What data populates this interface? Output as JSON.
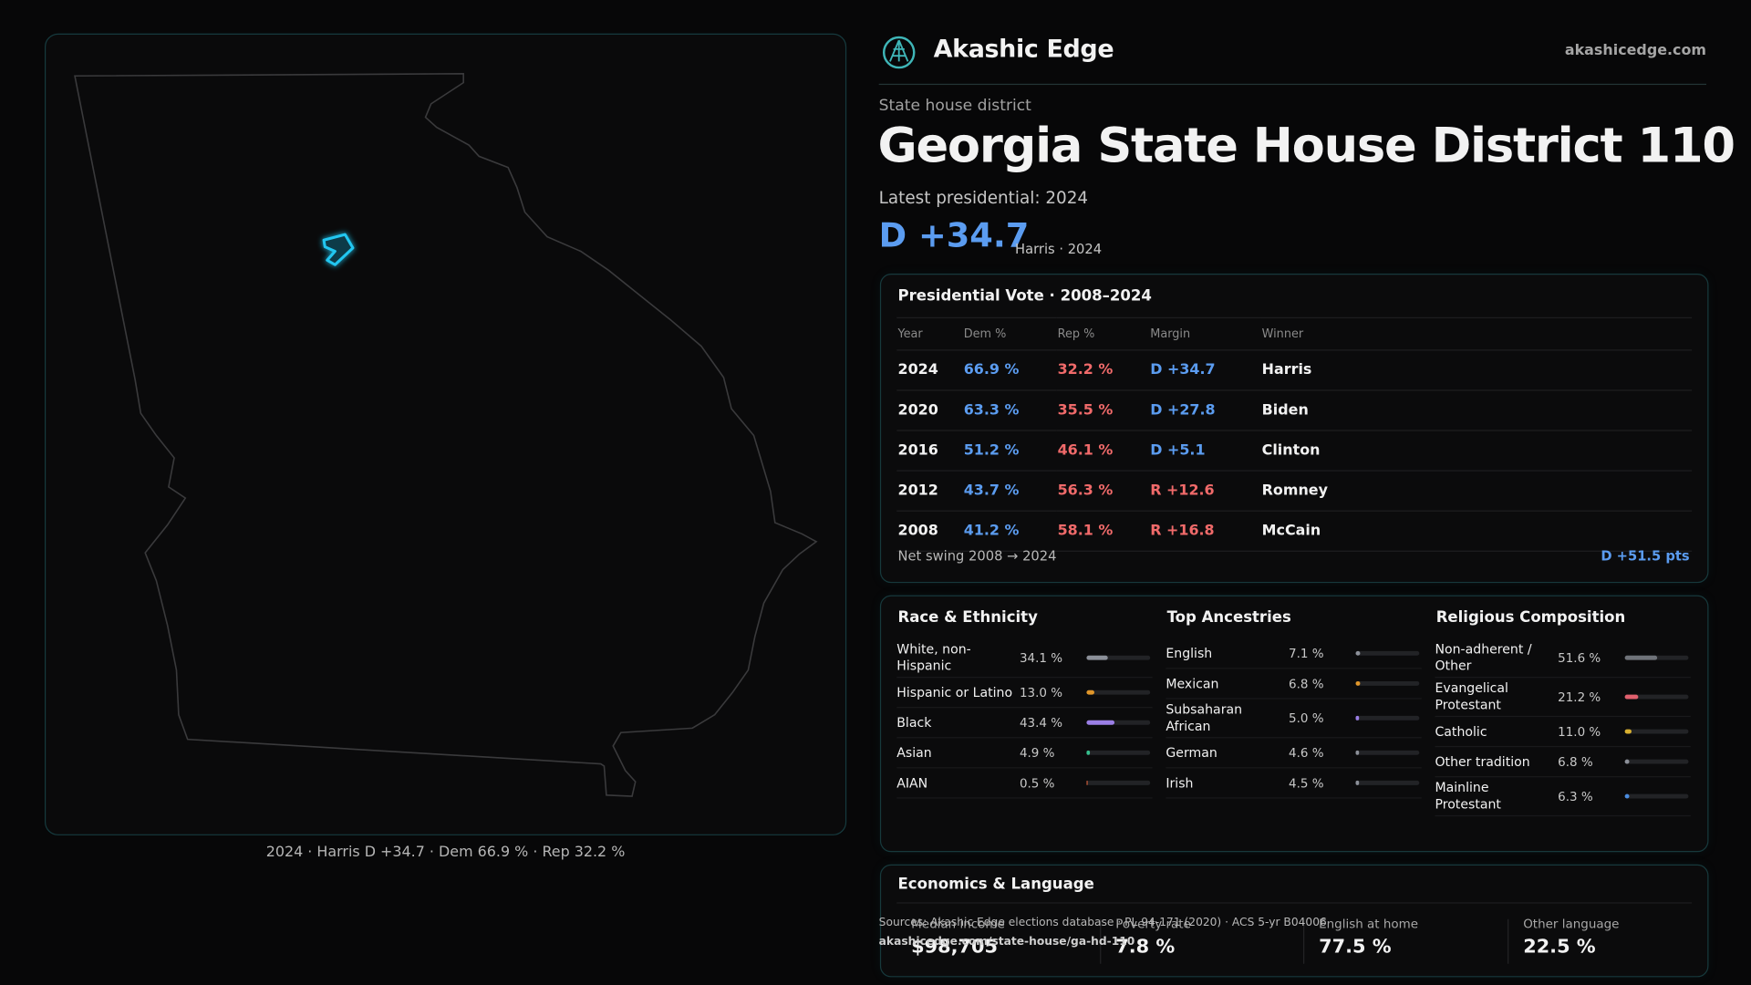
{
  "header": {
    "brand": "Akashic Edge",
    "site": "akashicedge.com"
  },
  "district": {
    "kicker": "State house district",
    "title": "Georgia State House District 110",
    "latest": "Latest presidential: 2024",
    "margin": "D +34.7",
    "margin_note": "Harris · 2024"
  },
  "map": {
    "caption": "2024 · Harris D +34.7 · Dem 66.9 % · Rep 32.2 %"
  },
  "presidential": {
    "title": "Presidential Vote · 2008–2024",
    "columns": [
      "Year",
      "Dem %",
      "Rep %",
      "Margin",
      "Winner"
    ],
    "rows": [
      [
        "2024",
        "66.9 %",
        "32.2 %",
        "D +34.7",
        "Harris"
      ],
      [
        "2020",
        "63.3 %",
        "35.5 %",
        "D +27.8",
        "Biden"
      ],
      [
        "2016",
        "51.2 %",
        "46.1 %",
        "D +5.1",
        "Clinton"
      ],
      [
        "2012",
        "43.7 %",
        "56.3 %",
        "R +12.6",
        "Romney"
      ],
      [
        "2008",
        "41.2 %",
        "58.1 %",
        "R +16.8",
        "McCain"
      ]
    ],
    "swing_label": "Net swing 2008 → 2024",
    "swing_value": "D +51.5 pts"
  },
  "race": {
    "title": "Race & Ethnicity",
    "rows": [
      {
        "label": "White, non-Hispanic",
        "value": 34.1,
        "value_label": "34.1 %",
        "color": "#8c9099"
      },
      {
        "label": "Hispanic or Latino",
        "value": 13.0,
        "value_label": "13.0 %",
        "color": "#e0962a"
      },
      {
        "label": "Black",
        "value": 43.4,
        "value_label": "43.4 %",
        "color": "#9b7fe6"
      },
      {
        "label": "Asian",
        "value": 4.9,
        "value_label": "4.9 %",
        "color": "#36c08e"
      },
      {
        "label": "AIAN",
        "value": 0.5,
        "value_label": "0.5 %",
        "color": "#c65a3a"
      }
    ]
  },
  "ancestry": {
    "title": "Top Ancestries",
    "rows": [
      {
        "label": "English",
        "value": 7.1,
        "value_label": "7.1 %",
        "color": "#8c9099"
      },
      {
        "label": "Mexican",
        "value": 6.8,
        "value_label": "6.8 %",
        "color": "#e0962a"
      },
      {
        "label": "Subsaharan African",
        "value": 5.0,
        "value_label": "5.0 %",
        "color": "#9b7fe6"
      },
      {
        "label": "German",
        "value": 4.6,
        "value_label": "4.6 %",
        "color": "#8c9099"
      },
      {
        "label": "Irish",
        "value": 4.5,
        "value_label": "4.5 %",
        "color": "#8c9099"
      }
    ]
  },
  "religion": {
    "title": "Religious Composition",
    "rows": [
      {
        "label": "Non-adherent / Other",
        "value": 51.6,
        "value_label": "51.6 %",
        "color": "#6f7379"
      },
      {
        "label": "Evangelical Protestant",
        "value": 21.2,
        "value_label": "21.2 %",
        "color": "#e0606e"
      },
      {
        "label": "Catholic",
        "value": 11.0,
        "value_label": "11.0 %",
        "color": "#d8b030"
      },
      {
        "label": "Other tradition",
        "value": 6.8,
        "value_label": "6.8 %",
        "color": "#8c9099"
      },
      {
        "label": "Mainline Protestant",
        "value": 6.3,
        "value_label": "6.3 %",
        "color": "#4a8ce0"
      }
    ]
  },
  "economics": {
    "title": "Economics & Language",
    "stats": [
      {
        "label": "Median income",
        "value": "$98,705"
      },
      {
        "label": "Poverty rate",
        "value": "7.8 %"
      },
      {
        "label": "English at home",
        "value": "77.5 %"
      },
      {
        "label": "Other language",
        "value": "22.5 %"
      }
    ]
  },
  "footer": {
    "sources": "Sources: Akashic Edge elections database · PL 94-171 (2020) · ACS 5-yr B04006",
    "url": "akashicedge.com/state-house/ga-hd-110"
  }
}
